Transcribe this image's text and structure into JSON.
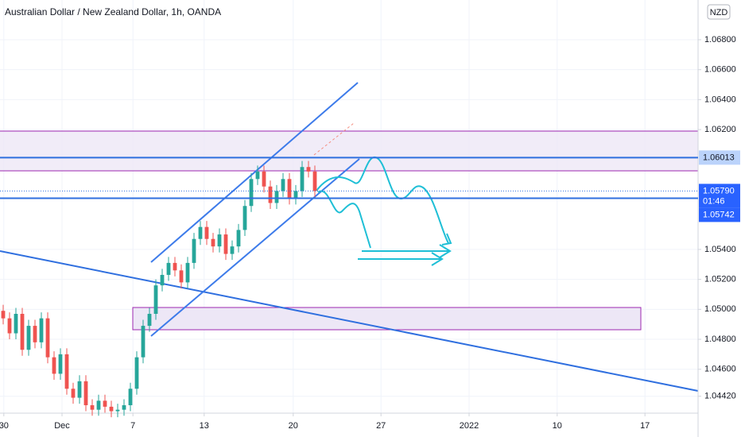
{
  "chart_data": {
    "type": "candlestick",
    "title": "Australian Dollar / New Zealand Dollar, 1h, OANDA",
    "currency": "NZD",
    "countdown": "01:46",
    "up_color": "#26a69a",
    "down_color": "#ef5350",
    "x": [
      0,
      1,
      2,
      3,
      4,
      5,
      6,
      7,
      8,
      9,
      10,
      11,
      12,
      13,
      14,
      15,
      16,
      17,
      18,
      19,
      20,
      21,
      22,
      23,
      24,
      25,
      26,
      27,
      28,
      29,
      30,
      31,
      32,
      33,
      34,
      35,
      36,
      37,
      38,
      39,
      40,
      41,
      42,
      43,
      44,
      45,
      46,
      47,
      48,
      49
    ],
    "open": [
      1.0499,
      1.0494,
      1.0484,
      1.0497,
      1.0473,
      1.0489,
      1.0478,
      1.0494,
      1.0468,
      1.0457,
      1.047,
      1.0447,
      1.0441,
      1.0452,
      1.0436,
      1.0433,
      1.0439,
      1.0435,
      1.0432,
      1.0433,
      1.0436,
      1.0447,
      1.0468,
      1.0489,
      1.0497,
      1.0516,
      1.0523,
      1.0531,
      1.0526,
      1.0518,
      1.0531,
      1.0547,
      1.0555,
      1.0547,
      1.0542,
      1.055,
      1.0537,
      1.0542,
      1.0553,
      1.0569,
      1.0587,
      1.0592,
      1.0582,
      1.0571,
      1.0579,
      1.0587,
      1.0574,
      1.0579,
      1.0595,
      1.0592
    ],
    "high": [
      1.0503,
      1.0498,
      1.0501,
      1.0501,
      1.0493,
      1.0493,
      1.0498,
      1.0498,
      1.0472,
      1.0474,
      1.0474,
      1.0451,
      1.0456,
      1.0456,
      1.044,
      1.0443,
      1.0443,
      1.0439,
      1.0437,
      1.044,
      1.0451,
      1.0472,
      1.0493,
      1.0501,
      1.052,
      1.0527,
      1.0535,
      1.0535,
      1.053,
      1.0535,
      1.0551,
      1.0559,
      1.0559,
      1.0551,
      1.0554,
      1.0554,
      1.0546,
      1.0557,
      1.0573,
      1.0591,
      1.0596,
      1.0596,
      1.0586,
      1.0583,
      1.0591,
      1.0591,
      1.0583,
      1.0599,
      1.0599,
      1.0596
    ],
    "low": [
      1.049,
      1.048,
      1.048,
      1.0469,
      1.0469,
      1.0474,
      1.0474,
      1.0464,
      1.0453,
      1.0453,
      1.0443,
      1.0437,
      1.0437,
      1.0432,
      1.0429,
      1.0429,
      1.0431,
      1.0428,
      1.0428,
      1.0429,
      1.0432,
      1.0443,
      1.0464,
      1.0485,
      1.0493,
      1.0512,
      1.0519,
      1.0522,
      1.0514,
      1.0514,
      1.0527,
      1.0543,
      1.0543,
      1.0538,
      1.0538,
      1.0533,
      1.0533,
      1.0538,
      1.0549,
      1.0565,
      1.0583,
      1.0578,
      1.0567,
      1.0567,
      1.0575,
      1.057,
      1.057,
      1.0575,
      1.0588,
      1.0575
    ],
    "close": [
      1.0494,
      1.0484,
      1.0497,
      1.0473,
      1.0489,
      1.0478,
      1.0494,
      1.0468,
      1.0457,
      1.047,
      1.0447,
      1.0441,
      1.0452,
      1.0436,
      1.0433,
      1.0439,
      1.0435,
      1.0432,
      1.0433,
      1.0436,
      1.0447,
      1.0468,
      1.0489,
      1.0497,
      1.0516,
      1.0523,
      1.0531,
      1.0526,
      1.0518,
      1.0531,
      1.0547,
      1.0555,
      1.0547,
      1.0542,
      1.055,
      1.0537,
      1.0542,
      1.0553,
      1.0569,
      1.0587,
      1.0592,
      1.0582,
      1.0571,
      1.0579,
      1.0587,
      1.0574,
      1.0579,
      1.0595,
      1.0592,
      1.0579
    ],
    "xlim": [
      -0.5,
      109.25
    ],
    "xticks": [
      {
        "value": 0.1,
        "label": "30"
      },
      {
        "value": 9.25,
        "label": "Dec"
      },
      {
        "value": 20.4,
        "label": "7"
      },
      {
        "value": 31.6,
        "label": "13"
      },
      {
        "value": 45.6,
        "label": "20"
      },
      {
        "value": 59.4,
        "label": "27"
      },
      {
        "value": 73.25,
        "label": "2022"
      },
      {
        "value": 87.1,
        "label": "10"
      },
      {
        "value": 100.9,
        "label": "17"
      }
    ],
    "ylim": [
      1.04307,
      1.07065
    ],
    "yticks": [
      {
        "value": 1.068,
        "label": "1.06800"
      },
      {
        "value": 1.066,
        "label": "1.06600"
      },
      {
        "value": 1.064,
        "label": "1.06400"
      },
      {
        "value": 1.062,
        "label": "1.06200"
      },
      {
        "value": 1.054,
        "label": "1.05400"
      },
      {
        "value": 1.052,
        "label": "1.05200"
      },
      {
        "value": 1.05,
        "label": "1.05000"
      },
      {
        "value": 1.048,
        "label": "1.04800"
      },
      {
        "value": 1.046,
        "label": "1.04600"
      },
      {
        "value": 1.0442,
        "label": "1.04420"
      }
    ],
    "price_lines": [
      {
        "value": 1.06013,
        "label": "1.06013"
      },
      {
        "value": 1.0579,
        "label": "1.05790"
      },
      {
        "value": 1.05742,
        "label": "1.05742"
      }
    ],
    "grid": true
  }
}
